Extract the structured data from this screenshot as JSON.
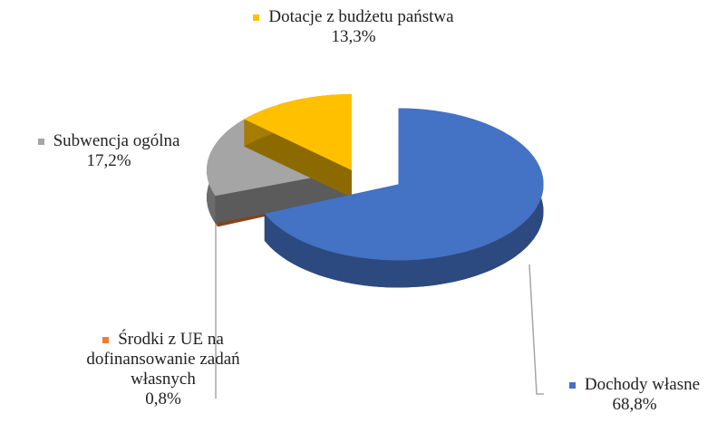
{
  "chart_data": {
    "type": "pie",
    "view": "3d-exploded",
    "categories": [
      "Dochody własne",
      "Środki z UE na dofinansowanie zadań własnych",
      "Subwencja ogólna",
      "Dotacje z budżetu państwa"
    ],
    "values": [
      68.8,
      0.8,
      17.2,
      13.3
    ],
    "value_labels": [
      "68,8%",
      "0,8%",
      "17,2%",
      "13,3%"
    ],
    "colors": [
      "#4472c4",
      "#ed7d31",
      "#a5a5a5",
      "#ffc000"
    ]
  }
}
